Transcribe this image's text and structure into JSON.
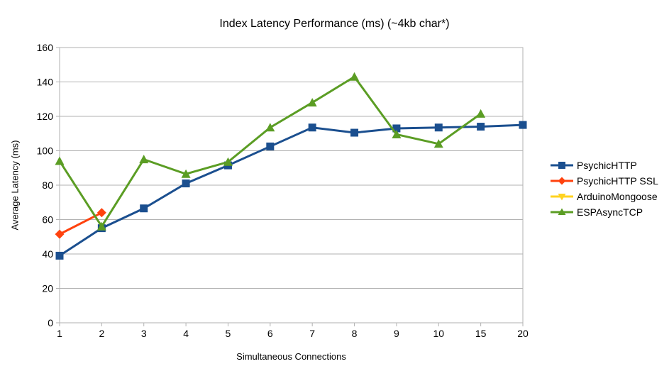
{
  "page": {
    "background_color": "#ffffff",
    "axis_color": "#b2b2b2",
    "text_color": "#000000"
  },
  "chart_data": {
    "type": "line",
    "title": "Index Latency Performance (ms) (~4kb char*)",
    "xlabel": "Simultaneous Connections",
    "ylabel": "Average Latency (ms)",
    "ylim": [
      0,
      160
    ],
    "yticks": [
      0,
      20,
      40,
      60,
      80,
      100,
      120,
      140,
      160
    ],
    "grid": "horizontal",
    "legend_position": "right",
    "categories": [
      "1",
      "2",
      "3",
      "4",
      "5",
      "6",
      "7",
      "8",
      "9",
      "10",
      "15",
      "20"
    ],
    "series": [
      {
        "name": "PsychicHTTP",
        "color": "#1B4F8F",
        "marker": "square",
        "values": [
          39,
          55,
          66.5,
          81,
          91.5,
          102.5,
          113.5,
          110.5,
          113,
          113.5,
          114,
          115
        ]
      },
      {
        "name": "PsychicHTTP SSL",
        "color": "#FF420E",
        "marker": "diamond",
        "values": [
          51.5,
          64,
          null,
          null,
          null,
          null,
          null,
          null,
          null,
          null,
          null,
          null
        ]
      },
      {
        "name": "ArduinoMongoose",
        "color": "#FFD320",
        "marker": "triangle-down",
        "values": [
          null,
          null,
          null,
          null,
          null,
          null,
          null,
          null,
          null,
          null,
          null,
          null
        ]
      },
      {
        "name": "ESPAsyncTCP",
        "color": "#5B9D24",
        "marker": "triangle-up",
        "values": [
          94,
          56,
          95,
          86.5,
          93.5,
          113.5,
          128,
          143,
          109.5,
          104,
          121.5,
          null
        ]
      }
    ]
  }
}
